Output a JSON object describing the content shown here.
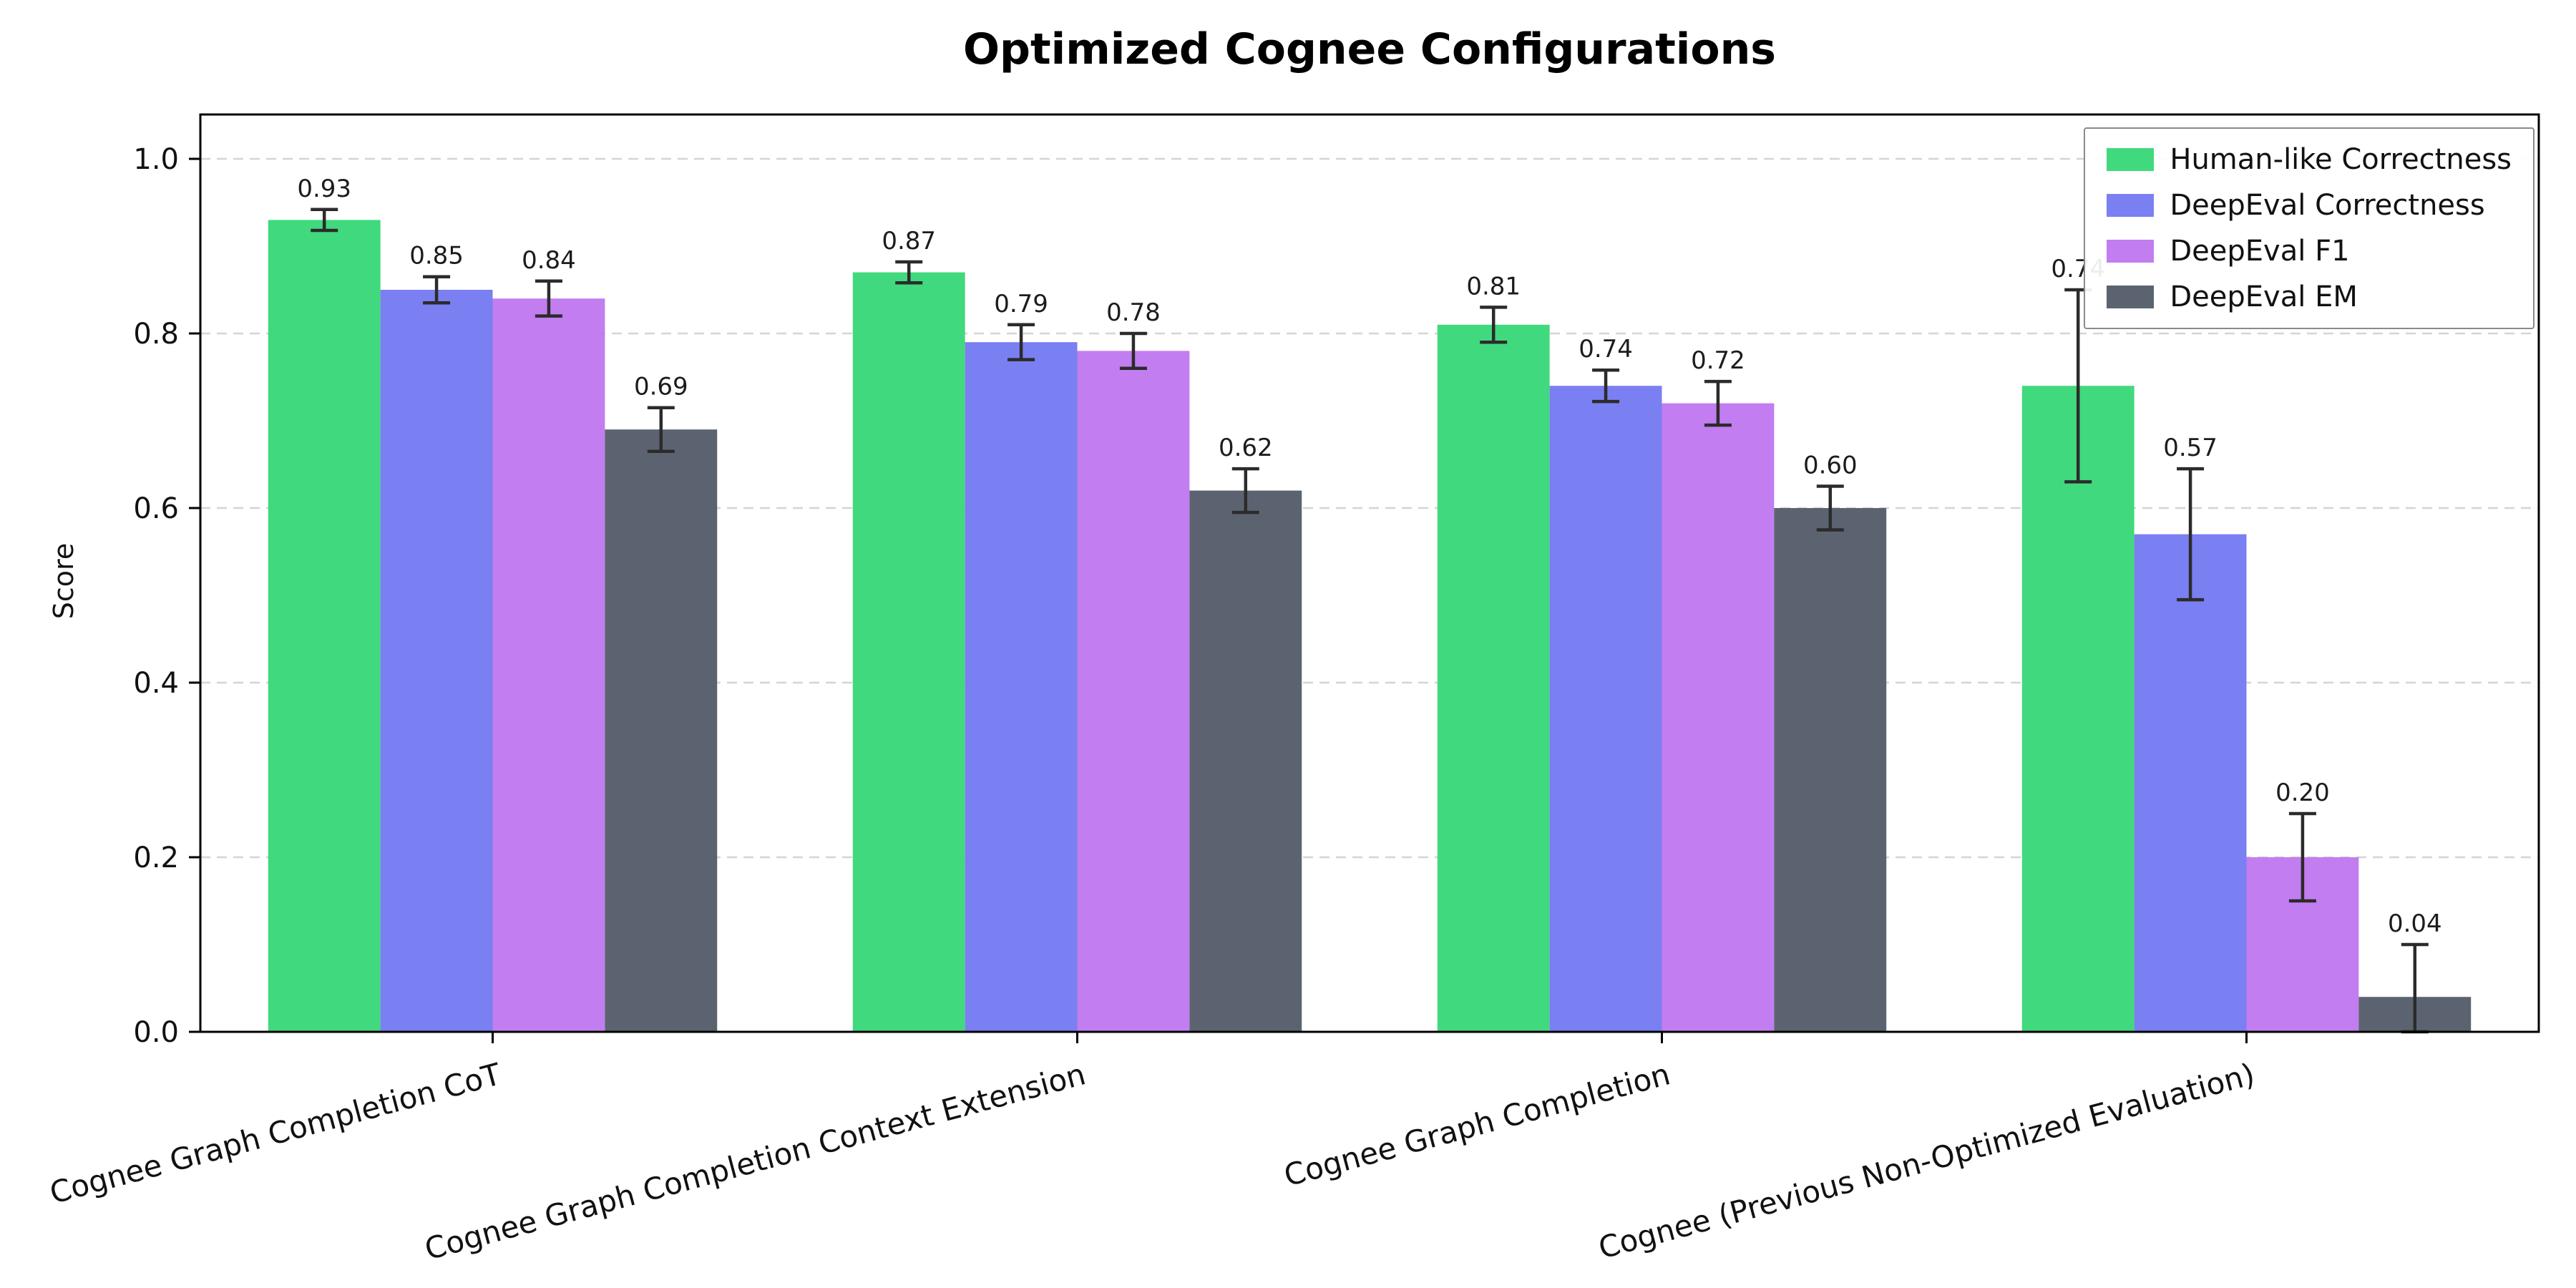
{
  "chart_data": {
    "type": "bar",
    "title": "Optimized Cognee Configurations",
    "xlabel": "",
    "ylabel": "Score",
    "ylim": [
      0.0,
      1.05
    ],
    "yticks": [
      0.0,
      0.2,
      0.4,
      0.6,
      0.8,
      1.0
    ],
    "grid": "horizontal dashed",
    "legend_position": "upper right",
    "value_label_format": "%.2f",
    "categories": [
      "Cognee Graph Completion CoT",
      "Cognee Graph Completion Context Extension",
      "Cognee Graph Completion",
      "Cognee (Previous Non-Optimized Evaluation)"
    ],
    "series": [
      {
        "name": "Human-like Correctness",
        "color": "#41d97d",
        "values": [
          0.93,
          0.87,
          0.81,
          0.74
        ],
        "errors": [
          0.012,
          0.012,
          0.02,
          0.11
        ]
      },
      {
        "name": "DeepEval Correctness",
        "color": "#7a7ff1",
        "values": [
          0.85,
          0.79,
          0.74,
          0.57
        ],
        "errors": [
          0.015,
          0.02,
          0.018,
          0.075
        ]
      },
      {
        "name": "DeepEval F1",
        "color": "#c27df0",
        "values": [
          0.84,
          0.78,
          0.72,
          0.2
        ],
        "errors": [
          0.02,
          0.02,
          0.025,
          0.05
        ]
      },
      {
        "name": "DeepEval EM",
        "color": "#5c6370",
        "values": [
          0.69,
          0.62,
          0.6,
          0.04
        ],
        "errors": [
          0.025,
          0.025,
          0.025,
          0.06
        ]
      }
    ]
  }
}
